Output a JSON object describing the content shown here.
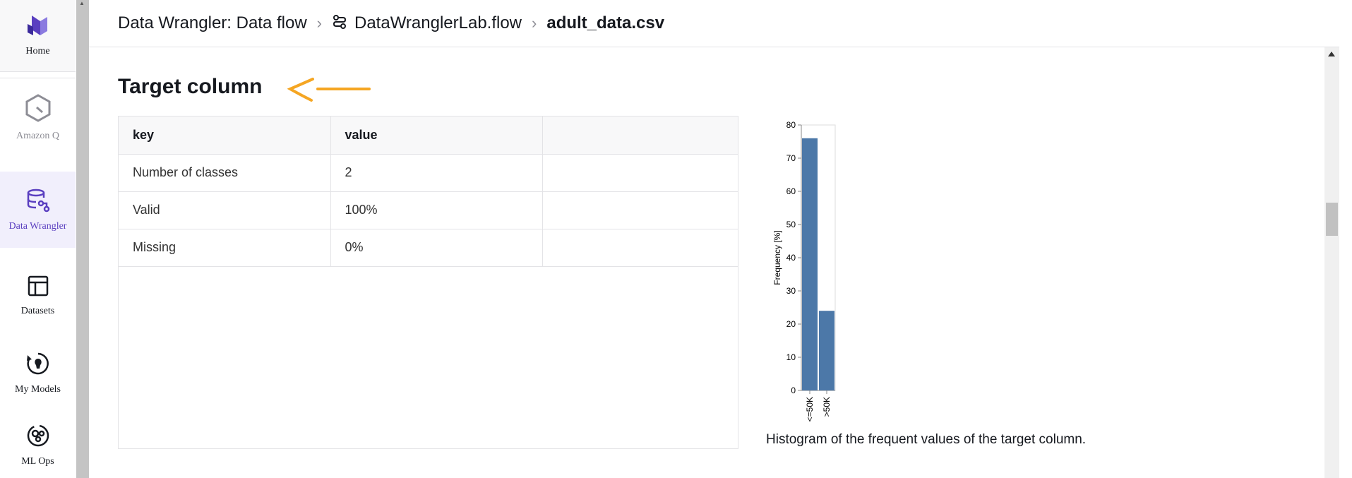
{
  "nav": {
    "items": [
      {
        "label": "Home",
        "icon": "home-logo-icon"
      },
      {
        "label": "Amazon Q",
        "icon": "amazon-q-icon"
      },
      {
        "label": "Data Wrangler",
        "icon": "data-wrangler-icon",
        "active": true
      },
      {
        "label": "Datasets",
        "icon": "datasets-icon"
      },
      {
        "label": "My Models",
        "icon": "my-models-icon"
      },
      {
        "label": "ML Ops",
        "icon": "ml-ops-icon"
      }
    ]
  },
  "breadcrumb": {
    "items": [
      "Data Wrangler: Data flow",
      "DataWranglerLab.flow",
      "adult_data.csv"
    ]
  },
  "section": {
    "title": "Target column"
  },
  "table": {
    "headers": [
      "key",
      "value",
      ""
    ],
    "rows": [
      [
        "Number of classes",
        "2",
        ""
      ],
      [
        "Valid",
        "100%",
        ""
      ],
      [
        "Missing",
        "0%",
        ""
      ]
    ]
  },
  "chart_data": {
    "type": "bar",
    "categories": [
      "<=50K",
      ">50K"
    ],
    "values": [
      76,
      24
    ],
    "ylabel": "Frequency [%]",
    "xlabel": "",
    "ylim": [
      0,
      80
    ],
    "yticks": [
      0,
      10,
      20,
      30,
      40,
      50,
      60,
      70,
      80
    ],
    "bar_color": "#4c78a8"
  },
  "chart_caption": "Histogram of the frequent values of the target column.",
  "colors": {
    "accent": "#5a3fc0",
    "annotation_arrow": "#f5a623",
    "bar": "#4c78a8"
  }
}
